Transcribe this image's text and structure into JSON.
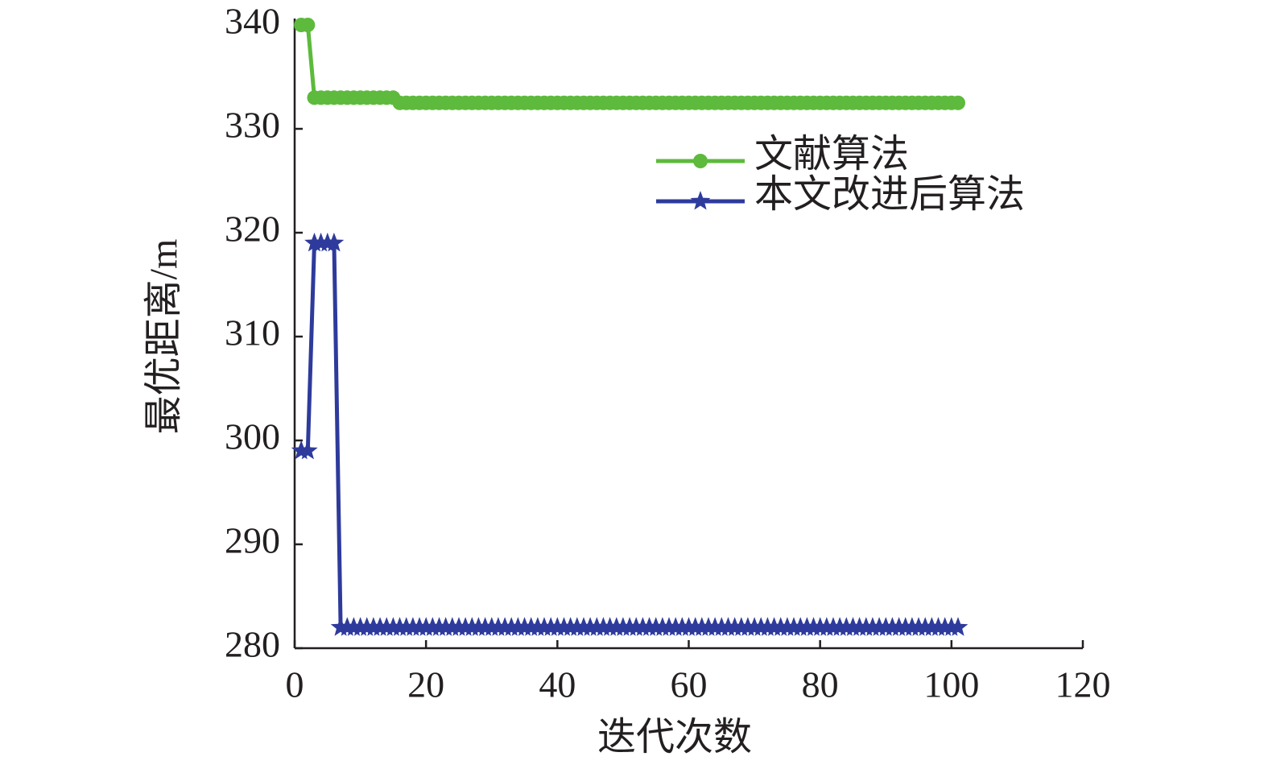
{
  "chart_data": {
    "type": "line",
    "x_label": "迭代次数",
    "y_label": "最优距离/m",
    "x": [
      1,
      2,
      3,
      4,
      5,
      6,
      7,
      8,
      9,
      10,
      11,
      12,
      13,
      14,
      15,
      16,
      17,
      18,
      19,
      20,
      21,
      22,
      23,
      24,
      25,
      26,
      27,
      28,
      29,
      30,
      31,
      32,
      33,
      34,
      35,
      36,
      37,
      38,
      39,
      40,
      41,
      42,
      43,
      44,
      45,
      46,
      47,
      48,
      49,
      50,
      51,
      52,
      53,
      54,
      55,
      56,
      57,
      58,
      59,
      60,
      61,
      62,
      63,
      64,
      65,
      66,
      67,
      68,
      69,
      70,
      71,
      72,
      73,
      74,
      75,
      76,
      77,
      78,
      79,
      80,
      81,
      82,
      83,
      84,
      85,
      86,
      87,
      88,
      89,
      90,
      91,
      92,
      93,
      94,
      95,
      96,
      97,
      98,
      99,
      100,
      101
    ],
    "series": [
      {
        "name": "文献算法",
        "color": "#5dba3c",
        "marker": "circle",
        "values": [
          340,
          340,
          333,
          333,
          333,
          333,
          333,
          333,
          333,
          333,
          333,
          333,
          333,
          333,
          333,
          332.5,
          332.5,
          332.5,
          332.5,
          332.5,
          332.5,
          332.5,
          332.5,
          332.5,
          332.5,
          332.5,
          332.5,
          332.5,
          332.5,
          332.5,
          332.5,
          332.5,
          332.5,
          332.5,
          332.5,
          332.5,
          332.5,
          332.5,
          332.5,
          332.5,
          332.5,
          332.5,
          332.5,
          332.5,
          332.5,
          332.5,
          332.5,
          332.5,
          332.5,
          332.5,
          332.5,
          332.5,
          332.5,
          332.5,
          332.5,
          332.5,
          332.5,
          332.5,
          332.5,
          332.5,
          332.5,
          332.5,
          332.5,
          332.5,
          332.5,
          332.5,
          332.5,
          332.5,
          332.5,
          332.5,
          332.5,
          332.5,
          332.5,
          332.5,
          332.5,
          332.5,
          332.5,
          332.5,
          332.5,
          332.5,
          332.5,
          332.5,
          332.5,
          332.5,
          332.5,
          332.5,
          332.5,
          332.5,
          332.5,
          332.5,
          332.5,
          332.5,
          332.5,
          332.5,
          332.5,
          332.5,
          332.5,
          332.5,
          332.5,
          332.5,
          332.5
        ]
      },
      {
        "name": "本文改进后算法",
        "color": "#2e3b9c",
        "marker": "star",
        "values": [
          299,
          299,
          319,
          319,
          319,
          319,
          282,
          282,
          282,
          282,
          282,
          282,
          282,
          282,
          282,
          282,
          282,
          282,
          282,
          282,
          282,
          282,
          282,
          282,
          282,
          282,
          282,
          282,
          282,
          282,
          282,
          282,
          282,
          282,
          282,
          282,
          282,
          282,
          282,
          282,
          282,
          282,
          282,
          282,
          282,
          282,
          282,
          282,
          282,
          282,
          282,
          282,
          282,
          282,
          282,
          282,
          282,
          282,
          282,
          282,
          282,
          282,
          282,
          282,
          282,
          282,
          282,
          282,
          282,
          282,
          282,
          282,
          282,
          282,
          282,
          282,
          282,
          282,
          282,
          282,
          282,
          282,
          282,
          282,
          282,
          282,
          282,
          282,
          282,
          282,
          282,
          282,
          282,
          282,
          282,
          282,
          282,
          282,
          282,
          282,
          282
        ]
      }
    ],
    "xlim": [
      0,
      120
    ],
    "xticks": [
      0,
      20,
      40,
      60,
      80,
      100,
      120
    ],
    "ylim": [
      280,
      340
    ],
    "yticks": [
      280,
      290,
      300,
      310,
      320,
      330,
      340
    ],
    "legend": "right",
    "grid": false
  }
}
